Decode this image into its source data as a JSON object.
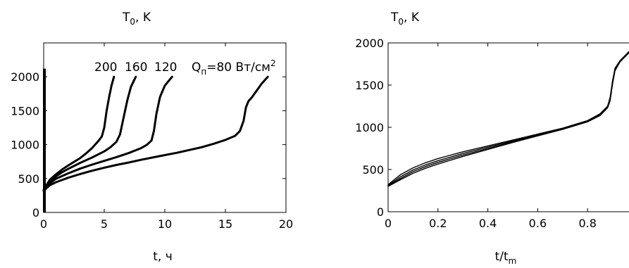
{
  "chart_data": [
    {
      "type": "line",
      "title": "",
      "ylabel_main": "T",
      "ylabel_sub": "0",
      "ylabel_rest": ", K",
      "xlabel": "t, ч",
      "xlim": [
        0,
        20
      ],
      "ylim": [
        0,
        2500
      ],
      "xticks": [
        0,
        5,
        10,
        15,
        20
      ],
      "yticks": [
        0,
        500,
        1000,
        1500,
        2000
      ],
      "grid": false,
      "legend": "inline labels above curve tops",
      "series": [
        {
          "name": "200",
          "x": [
            0,
            0.5,
            1,
            1.5,
            2,
            2.5,
            3,
            3.5,
            4,
            4.5,
            4.8,
            5.0,
            5.2,
            5.4,
            5.6,
            5.8
          ],
          "y": [
            330,
            480,
            560,
            630,
            690,
            745,
            800,
            870,
            950,
            1050,
            1120,
            1250,
            1500,
            1700,
            1870,
            2000
          ]
        },
        {
          "name": "160",
          "x": [
            0,
            0.5,
            1,
            1.5,
            2,
            3,
            4,
            5,
            5.5,
            6.0,
            6.3,
            6.6,
            6.9,
            7.2,
            7.6
          ],
          "y": [
            330,
            460,
            530,
            590,
            640,
            730,
            810,
            900,
            960,
            1040,
            1150,
            1400,
            1650,
            1850,
            2000
          ]
        },
        {
          "name": "120",
          "x": [
            0,
            0.5,
            1,
            2,
            3,
            4,
            5,
            6,
            7,
            8,
            8.5,
            8.9,
            9.1,
            9.3,
            9.6,
            10.0,
            10.6
          ],
          "y": [
            320,
            430,
            495,
            575,
            645,
            705,
            760,
            815,
            875,
            945,
            995,
            1060,
            1200,
            1450,
            1700,
            1870,
            2000
          ]
        },
        {
          "name": "Q_n=80 Вт/см^2",
          "x": [
            0,
            0.5,
            1,
            2,
            3,
            4,
            5,
            6,
            7,
            8,
            9,
            10,
            11,
            12,
            13,
            14,
            15,
            15.8,
            16.2,
            16.5,
            16.7,
            16.9,
            17.2,
            17.6,
            18.0,
            18.5
          ],
          "y": [
            320,
            400,
            445,
            510,
            565,
            615,
            660,
            700,
            735,
            775,
            810,
            845,
            880,
            920,
            960,
            1010,
            1070,
            1130,
            1200,
            1350,
            1550,
            1640,
            1700,
            1800,
            1900,
            2000
          ]
        }
      ],
      "labels": {
        "s200": "200",
        "s160": "160",
        "s120": "120",
        "q_main": "Q",
        "q_sub": "п",
        "q_rest": "=80 Вт/см",
        "q_sup": "2"
      }
    },
    {
      "type": "line",
      "title": "",
      "ylabel_main": "T",
      "ylabel_sub": "0",
      "ylabel_rest": ", K",
      "xlabel_main": "t/t",
      "xlabel_sub": "m",
      "xlim": [
        0,
        1
      ],
      "ylim": [
        0,
        2000
      ],
      "xticks": [
        0,
        0.2,
        0.4,
        0.6,
        0.8
      ],
      "xtick_labels": [
        "0",
        "0.2",
        "0.4",
        "0.6",
        "0.8"
      ],
      "yticks": [
        0,
        500,
        1000,
        1500,
        2000
      ],
      "grid": false,
      "series": [
        {
          "x": [
            0,
            0.05,
            0.1,
            0.15,
            0.2,
            0.3,
            0.4,
            0.5,
            0.6,
            0.7,
            0.8,
            0.85,
            0.88,
            0.89,
            0.9,
            0.91,
            0.93,
            0.96,
            1.0
          ],
          "y": [
            320,
            440,
            520,
            580,
            630,
            710,
            780,
            850,
            920,
            990,
            1080,
            1160,
            1250,
            1350,
            1550,
            1700,
            1790,
            1880,
            1990
          ]
        },
        {
          "x": [
            0,
            0.05,
            0.1,
            0.15,
            0.2,
            0.3,
            0.4,
            0.5,
            0.6,
            0.7,
            0.8,
            0.85,
            0.88,
            0.89,
            0.9,
            0.91,
            0.93,
            0.96,
            1.0
          ],
          "y": [
            310,
            415,
            495,
            555,
            605,
            690,
            765,
            840,
            912,
            985,
            1075,
            1150,
            1240,
            1330,
            1530,
            1690,
            1785,
            1875,
            1985
          ]
        },
        {
          "x": [
            0,
            0.05,
            0.1,
            0.15,
            0.2,
            0.3,
            0.4,
            0.5,
            0.6,
            0.7,
            0.8,
            0.85,
            0.88,
            0.89,
            0.9,
            0.91,
            0.93,
            0.96,
            1.0
          ],
          "y": [
            300,
            395,
            475,
            535,
            585,
            672,
            750,
            830,
            905,
            980,
            1070,
            1145,
            1235,
            1320,
            1520,
            1680,
            1780,
            1870,
            1980
          ]
        },
        {
          "x": [
            0,
            0.05,
            0.1,
            0.15,
            0.2,
            0.3,
            0.4,
            0.5,
            0.6,
            0.7,
            0.8,
            0.85,
            0.88,
            0.89,
            0.9,
            0.91,
            0.93,
            0.96,
            1.0
          ],
          "y": [
            300,
            380,
            455,
            515,
            565,
            655,
            738,
            820,
            898,
            975,
            1065,
            1140,
            1230,
            1310,
            1510,
            1670,
            1775,
            1865,
            1975
          ]
        }
      ]
    }
  ]
}
